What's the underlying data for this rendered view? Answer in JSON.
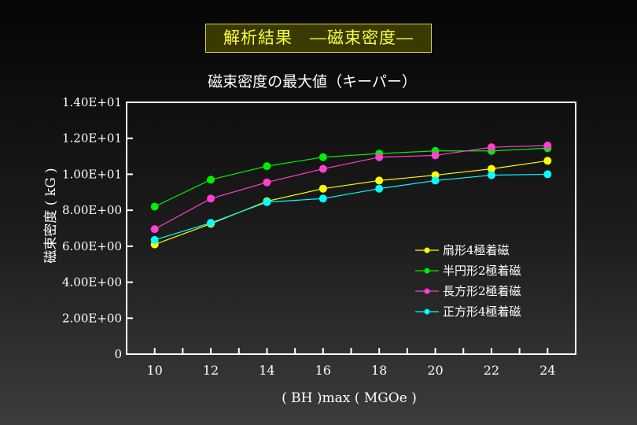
{
  "header": {
    "title": "解析結果　―磁束密度―"
  },
  "chart_data": {
    "type": "line",
    "title": "磁束密度の最大値（キーパー）",
    "xlabel": "( BH )max ( MGOe )",
    "ylabel": "磁束密度 ( kG )",
    "x": [
      10,
      12,
      14,
      16,
      18,
      20,
      22,
      24
    ],
    "xlim": [
      9,
      25
    ],
    "ylim": [
      0,
      14
    ],
    "yticks": [
      0,
      2,
      4,
      6,
      8,
      10,
      12,
      14
    ],
    "ytick_labels": [
      "0",
      "2.00E+00",
      "4.00E+00",
      "6.00E+00",
      "8.00E+00",
      "1.00E+01",
      "1.20E+01",
      "1.40E+01"
    ],
    "xtick_labels": [
      "10",
      "12",
      "14",
      "16",
      "18",
      "20",
      "22",
      "24"
    ],
    "grid": false,
    "legend_position": "right",
    "series": [
      {
        "name": "扇形4極着磁",
        "color": "#ffff00",
        "values": [
          6.1,
          7.25,
          8.5,
          9.2,
          9.65,
          9.95,
          10.3,
          10.75
        ]
      },
      {
        "name": "半円形2極着磁",
        "color": "#00ee00",
        "values": [
          8.2,
          9.7,
          10.45,
          10.95,
          11.15,
          11.3,
          11.3,
          11.45
        ]
      },
      {
        "name": "長方形2極着磁",
        "color": "#ff40d0",
        "values": [
          6.95,
          8.65,
          9.55,
          10.3,
          10.95,
          11.05,
          11.5,
          11.6
        ]
      },
      {
        "name": "正方形4極着磁",
        "color": "#00ffff",
        "values": [
          6.35,
          7.3,
          8.45,
          8.65,
          9.2,
          9.65,
          9.95,
          10.0
        ]
      }
    ]
  }
}
